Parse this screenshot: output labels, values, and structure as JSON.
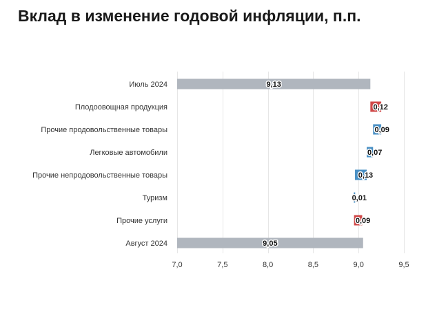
{
  "title": "Вклад в изменение годовой инфляции, п.п.",
  "colors": {
    "total": "#b0b6be",
    "increase": "#d04a4a",
    "decrease": "#4a90c4",
    "grid": "#e6e6e6"
  },
  "chart_data": {
    "type": "bar",
    "subtype": "waterfall",
    "orientation": "horizontal",
    "title": "Вклад в изменение годовой инфляции, п.п.",
    "xlim": [
      7.0,
      9.5
    ],
    "xticks": [
      "7,0",
      "7,5",
      "8,0",
      "8,5",
      "9,0",
      "9,5"
    ],
    "xtick_values": [
      7.0,
      7.5,
      8.0,
      8.5,
      9.0,
      9.5
    ],
    "grid": true,
    "categories": [
      "Июль 2024",
      "Плодоовощная продукция",
      "Прочие продовольственные товары",
      "Легковые автомобили",
      "Прочие непродовольственные товары",
      "Туризм",
      "Прочие услуги",
      "Август 2024"
    ],
    "items": [
      {
        "kind": "total",
        "value": 9.13,
        "label": "9,13"
      },
      {
        "kind": "delta",
        "value": 0.12,
        "label": "0,12"
      },
      {
        "kind": "delta",
        "value": -0.09,
        "label": "0,09"
      },
      {
        "kind": "delta",
        "value": -0.07,
        "label": "0,07"
      },
      {
        "kind": "delta",
        "value": -0.13,
        "label": "0,13"
      },
      {
        "kind": "delta",
        "value": -0.01,
        "label": "0,01"
      },
      {
        "kind": "delta",
        "value": 0.09,
        "label": "0,09"
      },
      {
        "kind": "total",
        "value": 9.05,
        "label": "9,05"
      }
    ]
  }
}
